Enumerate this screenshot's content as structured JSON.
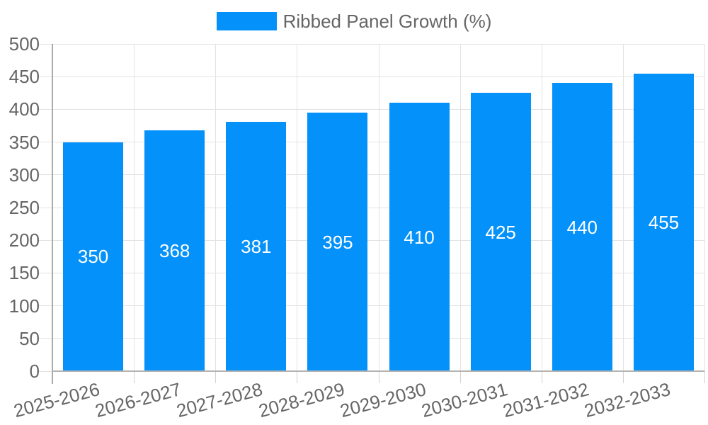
{
  "chart_data": {
    "type": "bar",
    "title": "",
    "legend_position": "top",
    "series": [
      {
        "name": "Ribbed Panel Growth (%)",
        "values": [
          350,
          368,
          381,
          395,
          410,
          425,
          440,
          455
        ]
      }
    ],
    "categories": [
      "2025-2026",
      "2026-2027",
      "2027-2028",
      "2028-2029",
      "2029-2030",
      "2030-2031",
      "2031-2032",
      "2032-2033"
    ],
    "value_labels": [
      "350",
      "368",
      "381",
      "395",
      "410",
      "425",
      "440",
      "455"
    ],
    "xlabel": "",
    "ylabel": "",
    "ylim": [
      0,
      500
    ],
    "ytick_step": 50,
    "ytick_labels": [
      "0",
      "50",
      "100",
      "150",
      "200",
      "250",
      "300",
      "350",
      "400",
      "450",
      "500"
    ],
    "grid": true,
    "colors": {
      "bar": "#0591fa",
      "bar_value_text": "#ffffff",
      "axis_text": "#666666",
      "gridline": "#e3e3e3",
      "axis_line": "#aaaaaa",
      "background": "#ffffff"
    }
  }
}
